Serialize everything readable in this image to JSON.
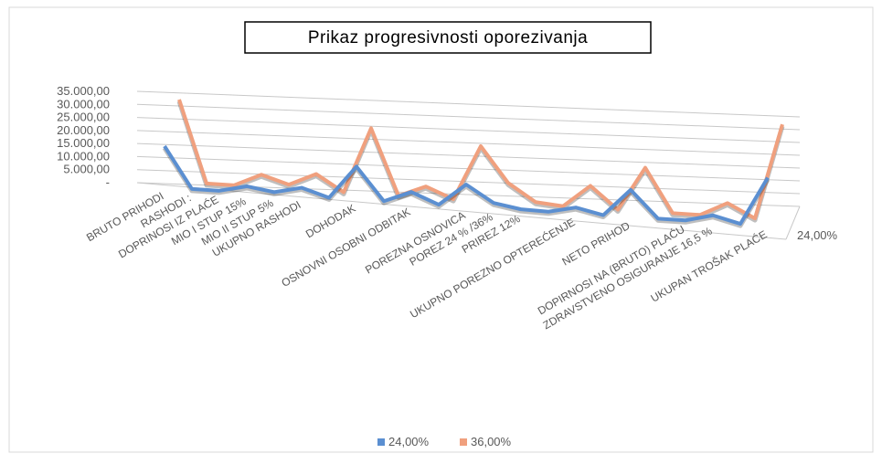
{
  "chart_data": {
    "type": "line3d",
    "title": "Prikaz progresivnosti oporezivanja",
    "categories": [
      "BRUTO PRIHODI",
      "RASHODI :",
      "DOPRINOSI IZ PLAĆE",
      "MIO I STUP 15%",
      "MIO II STUP 5%",
      "UKUPNO RASHODI",
      null,
      "DOHODAK",
      null,
      "OSNOVNI OSOBNI ODBITAK",
      null,
      "POREZNA OSNOVICA",
      "POREZ  24 %  /36%",
      "PRIREZ 12%",
      null,
      "UKUPNO POREZNO OPTEREĆENJE",
      null,
      "NETO PRIHOD",
      null,
      "DOPIRNOSI NA (BRUTO)  PLAĆU",
      "ZDRAVSTVENO OSIGURANJE 16,5 %",
      null,
      "UKUPAN TROŠAK PLAĆE"
    ],
    "series": [
      {
        "name": "24,00%",
        "color": "#5b8fd1",
        "values": [
          15000,
          0,
          0,
          2250,
          750,
          3000,
          0,
          12000,
          0,
          4000,
          0,
          8000,
          1920,
          230,
          0,
          2150,
          0,
          9850,
          0,
          0,
          2475,
          0,
          17475
        ]
      },
      {
        "name": "36,00%",
        "color": "#f0a07e",
        "values": [
          30000,
          0,
          0,
          4500,
          1500,
          6000,
          0,
          24000,
          0,
          4000,
          0,
          20000,
          7200,
          860,
          0,
          8060,
          0,
          15940,
          0,
          0,
          4950,
          0,
          34950
        ]
      }
    ],
    "ylim": [
      0,
      35000
    ],
    "yticks": [
      {
        "value": 0,
        "label": "-"
      },
      {
        "value": 5000,
        "label": "5.000,00"
      },
      {
        "value": 10000,
        "label": "10.000,00"
      },
      {
        "value": 15000,
        "label": "15.000,00"
      },
      {
        "value": 20000,
        "label": "20.000,00"
      },
      {
        "value": 25000,
        "label": "25.000,00"
      },
      {
        "value": 30000,
        "label": "30.000,00"
      },
      {
        "value": 35000,
        "label": "35.000,00"
      }
    ],
    "grid": true,
    "legend": "bottom"
  }
}
